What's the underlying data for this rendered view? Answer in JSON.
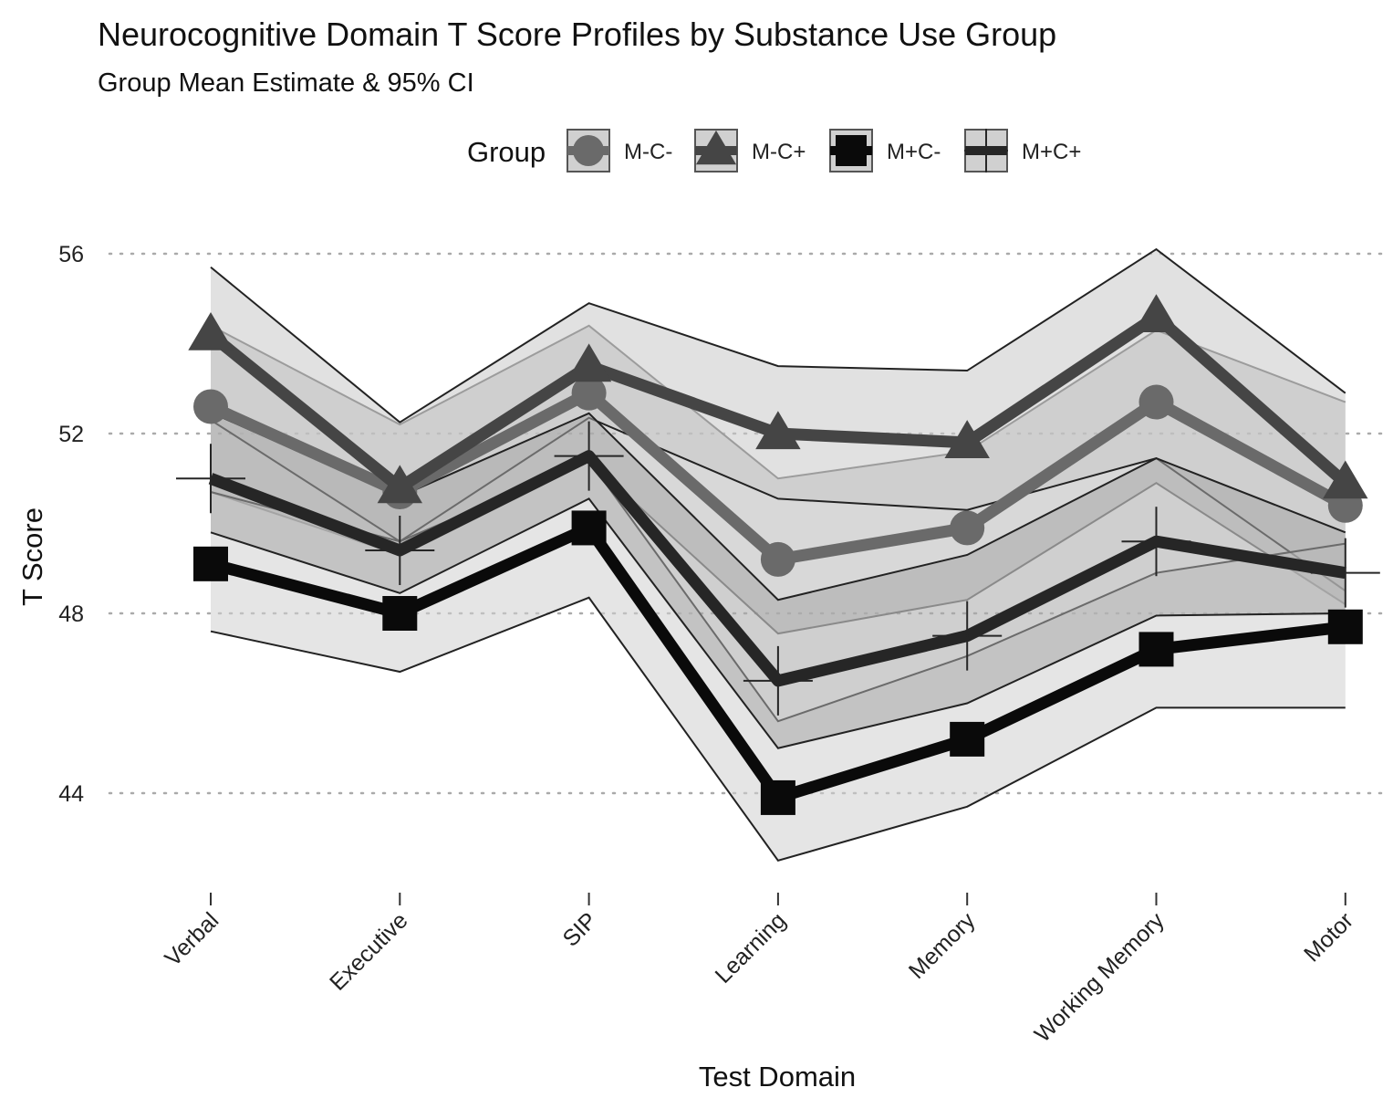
{
  "chart_data": {
    "type": "line",
    "title": "Neurocognitive Domain T Score Profiles by Substance Use Group",
    "subtitle": "Group Mean Estimate & 95% CI",
    "xlabel": "Test Domain",
    "ylabel": "T Score",
    "categories": [
      "Verbal",
      "Executive",
      "SIP",
      "Learning",
      "Memory",
      "Working Memory",
      "Motor"
    ],
    "yticks": [
      44,
      48,
      52,
      56
    ],
    "ylim": [
      41.8,
      57.1
    ],
    "grid": "horizontal dotted",
    "legend": {
      "title": "Group",
      "placement": "top"
    },
    "series": [
      {
        "name": "M-C-",
        "marker": "circle",
        "color": "#6a6a6a",
        "values": [
          52.6,
          50.7,
          52.9,
          49.2,
          49.9,
          52.7,
          50.4
        ],
        "ci_lower": [
          50.7,
          49.3,
          51.4,
          47.55,
          48.3,
          50.9,
          48.2
        ],
        "ci_upper": [
          54.4,
          52.2,
          54.4,
          51.0,
          51.6,
          54.3,
          52.7
        ]
      },
      {
        "name": "M-C+",
        "marker": "triangle",
        "color": "#454545",
        "values": [
          54.2,
          50.8,
          53.5,
          52.0,
          51.8,
          54.6,
          50.9
        ],
        "ci_lower": [
          52.3,
          49.6,
          52.35,
          50.55,
          50.3,
          51.45,
          48.5
        ],
        "ci_upper": [
          55.7,
          52.25,
          54.9,
          53.5,
          53.4,
          56.1,
          52.9
        ]
      },
      {
        "name": "M+C-",
        "marker": "square",
        "color": "#0a0a0a",
        "values": [
          49.1,
          48.0,
          49.9,
          43.9,
          45.2,
          47.2,
          47.7
        ],
        "ci_lower": [
          47.6,
          46.7,
          48.35,
          42.5,
          43.7,
          45.9,
          45.9
        ],
        "ci_upper": [
          50.7,
          49.6,
          51.4,
          45.6,
          47.05,
          48.9,
          49.55
        ]
      },
      {
        "name": "M+C+",
        "marker": "cross",
        "color": "#262626",
        "values": [
          51.0,
          49.4,
          51.5,
          46.5,
          47.5,
          49.6,
          48.9
        ],
        "ci_lower": [
          49.8,
          48.45,
          50.55,
          45.0,
          46.0,
          47.95,
          48.0
        ],
        "ci_upper": [
          52.47,
          50.6,
          52.45,
          48.3,
          49.3,
          51.45,
          49.8
        ]
      }
    ]
  }
}
